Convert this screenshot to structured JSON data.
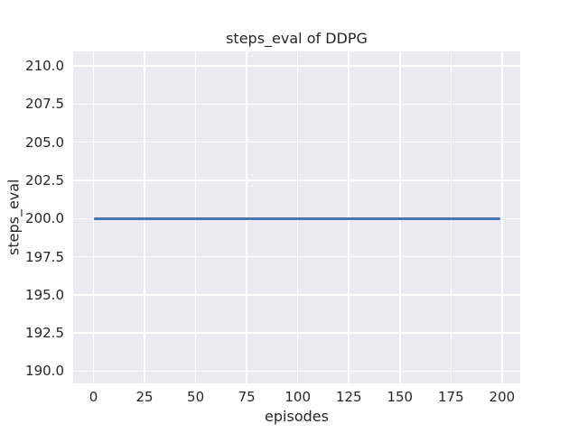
{
  "chart_data": {
    "type": "line",
    "title": "steps_eval of DDPG",
    "xlabel": "episodes",
    "ylabel": "steps_eval",
    "xlim": [
      -9.95,
      208.9
    ],
    "ylim": [
      189.2,
      210.95
    ],
    "xticks": [
      0,
      25,
      50,
      75,
      100,
      125,
      150,
      175,
      200
    ],
    "xtick_labels": [
      "0",
      "25",
      "50",
      "75",
      "100",
      "125",
      "150",
      "175",
      "200"
    ],
    "yticks": [
      190.0,
      192.5,
      195.0,
      197.5,
      200.0,
      202.5,
      205.0,
      207.5,
      210.0
    ],
    "ytick_labels": [
      "190.0",
      "192.5",
      "195.0",
      "197.5",
      "200.0",
      "202.5",
      "205.0",
      "207.5",
      "210.0"
    ],
    "grid": true,
    "legend": false,
    "series": [
      {
        "name": "steps_eval",
        "color": "#4C72B0",
        "x_start": 0,
        "x_end": 199,
        "constant_y": 200.0,
        "description": "flat horizontal line at steps_eval = 200 spanning episodes 0 to 199"
      }
    ],
    "style": {
      "plot_background": "#EAEAF2",
      "grid_color": "#FFFFFF",
      "figure_background": "#FFFFFF",
      "text_color": "#262626",
      "line_color": "#4C72B0"
    }
  }
}
